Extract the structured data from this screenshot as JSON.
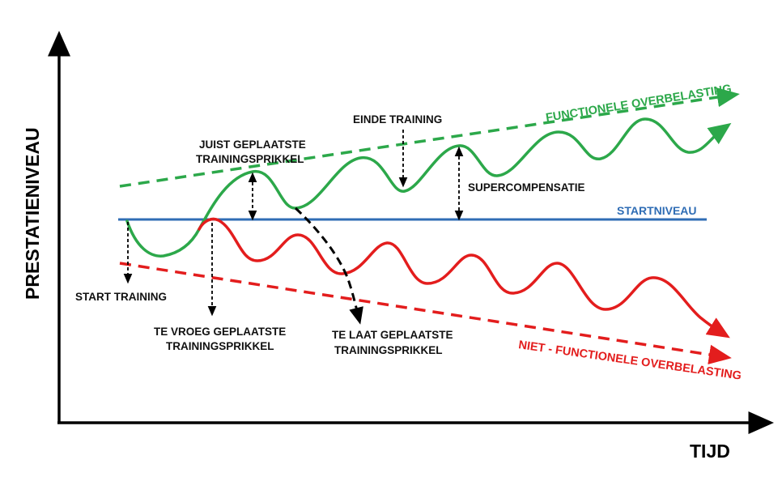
{
  "axes": {
    "y_label": "PRESTATIENIVEAU",
    "x_label": "TIJD"
  },
  "colors": {
    "green": "#2ca84a",
    "red": "#e31d1d",
    "blue": "#2f6db5",
    "black": "#000000"
  },
  "lines": {
    "functional": "FUNCTIONELE OVERBELASTING",
    "non_functional": "NIET - FUNCTIONELE OVERBELASTING",
    "baseline": "STARTNIVEAU"
  },
  "labels": {
    "start_training": "START TRAINING",
    "correct_stimulus_1": "JUIST GEPLAATSTE",
    "correct_stimulus_2": "TRAININGSPRIKKEL",
    "end_training": "EINDE TRAINING",
    "supercompensation": "SUPERCOMPENSATIE",
    "early_stimulus_1": "TE VROEG GEPLAATSTE",
    "early_stimulus_2": "TRAININGSPRIKKEL",
    "late_stimulus_1": "TE LAAT GEPLAATSTE",
    "late_stimulus_2": "TRAININGSPRIKKEL"
  }
}
